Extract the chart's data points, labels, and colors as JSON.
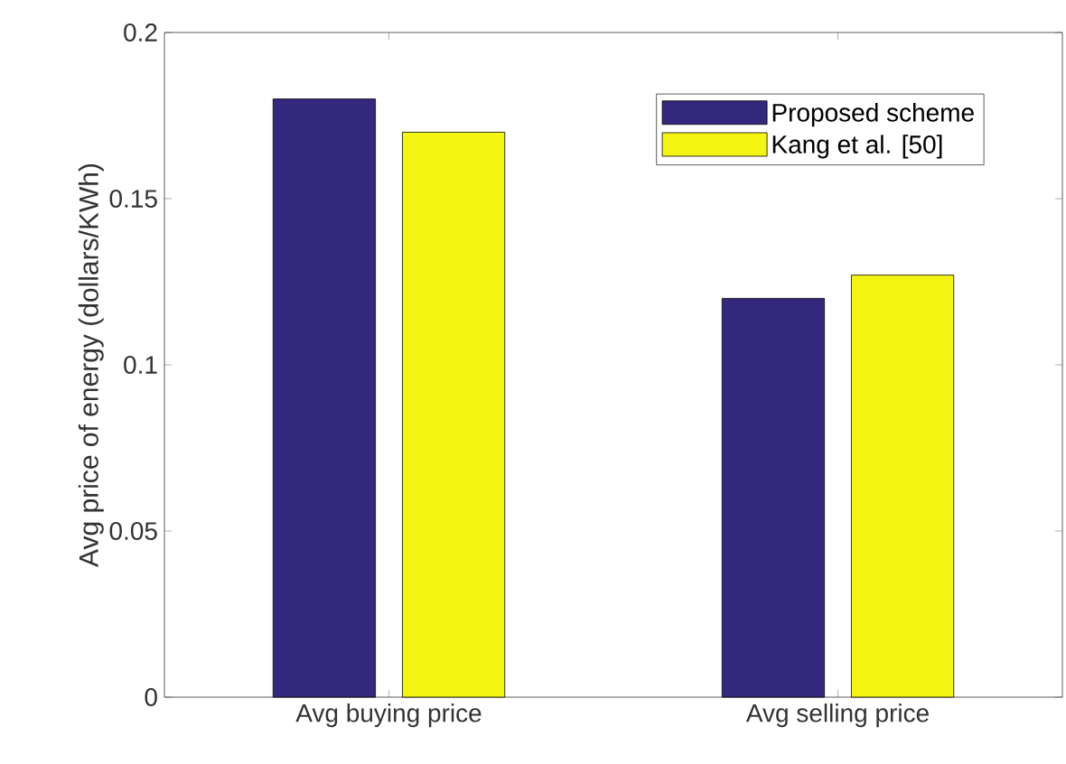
{
  "chart_data": {
    "type": "bar",
    "ylabel": "Avg price of energy (dollars/KWh)",
    "categories": [
      "Avg buying price",
      "Avg selling price"
    ],
    "series": [
      {
        "name": "Proposed scheme",
        "color": "#33287e",
        "values": [
          0.18,
          0.12
        ]
      },
      {
        "name": "Kang et al. [50]",
        "color": "#f5f514",
        "values": [
          0.17,
          0.127
        ]
      }
    ],
    "ylim": [
      0,
      0.2
    ],
    "yticks": [
      0,
      0.05,
      0.1,
      0.15,
      0.2
    ],
    "legend": "top right"
  }
}
